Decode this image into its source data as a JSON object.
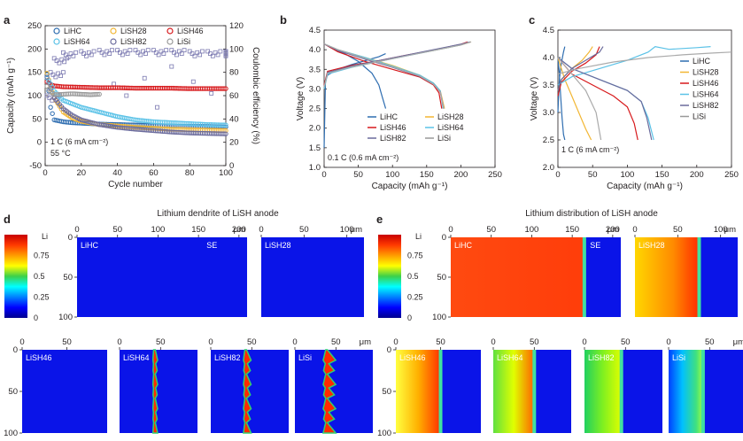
{
  "chart_data": [
    {
      "panel": "a",
      "type": "scatter",
      "xlabel": "Cycle number",
      "ylabel": "Capacity (mAh g⁻¹)",
      "y2label": "Coulombic efficiency (%)",
      "xlim": [
        0,
        100
      ],
      "ylim": [
        -50,
        250
      ],
      "y2lim": [
        0,
        120
      ],
      "xticks": [
        0,
        20,
        40,
        60,
        80,
        100
      ],
      "yticks": [
        -50,
        0,
        50,
        100,
        150,
        200,
        250
      ],
      "y2ticks": [
        0,
        20,
        40,
        60,
        80,
        100,
        120
      ],
      "annotations": [
        "1 C (6 mA cm⁻²)",
        "55 °C"
      ],
      "legend": [
        "LiHC",
        "LiSH28",
        "LiSH46",
        "LiSH64",
        "LiSH82",
        "LiSi"
      ],
      "series": [
        {
          "name": "LiHC",
          "color": "#2e6db0",
          "x": [
            1,
            3,
            5,
            10,
            15,
            20,
            30,
            40,
            50,
            60,
            70,
            80,
            90,
            100
          ],
          "y": [
            145,
            75,
            48,
            44,
            42,
            41,
            39,
            38,
            37,
            36,
            35,
            34,
            34,
            33
          ]
        },
        {
          "name": "LiSH28",
          "color": "#f2b633",
          "x": [
            1,
            3,
            5,
            10,
            15,
            20,
            30,
            40,
            50,
            60,
            70,
            80,
            90,
            100
          ],
          "y": [
            148,
            120,
            95,
            65,
            52,
            45,
            38,
            35,
            32,
            30,
            28,
            27,
            26,
            25
          ]
        },
        {
          "name": "LiSH46",
          "color": "#d7191c",
          "x": [
            1,
            3,
            5,
            10,
            20,
            30,
            40,
            50,
            60,
            70,
            80,
            90,
            100
          ],
          "y": [
            130,
            124,
            121,
            119,
            118,
            117,
            117,
            116,
            116,
            116,
            115,
            115,
            115
          ]
        },
        {
          "name": "LiSH64",
          "color": "#5bc2e7",
          "x": [
            1,
            3,
            5,
            10,
            20,
            30,
            40,
            50,
            60,
            70,
            80,
            90,
            100
          ],
          "y": [
            138,
            125,
            110,
            90,
            75,
            65,
            55,
            48,
            44,
            42,
            40,
            38,
            37
          ]
        },
        {
          "name": "LiSH82",
          "color": "#6b6b9c",
          "x": [
            1,
            3,
            5,
            10,
            15,
            20,
            30,
            40,
            50,
            60,
            70,
            80,
            90,
            100
          ],
          "y": [
            140,
            115,
            95,
            72,
            58,
            48,
            38,
            32,
            28,
            25,
            22,
            20,
            19,
            18
          ]
        },
        {
          "name": "LiSi",
          "color": "#999999",
          "x": [
            1,
            3,
            5,
            10,
            15,
            20,
            25,
            30
          ],
          "y": [
            120,
            108,
            102,
            103,
            104,
            103,
            102,
            103
          ]
        }
      ],
      "coulombic_efficiency": {
        "x": [
          1,
          3,
          5,
          10,
          20,
          30,
          40,
          50,
          60,
          70,
          80,
          90,
          100
        ],
        "y": [
          60,
          80,
          92,
          97,
          98,
          99,
          99,
          99,
          99,
          99,
          98,
          98,
          98
        ]
      }
    },
    {
      "panel": "b",
      "type": "line",
      "xlabel": "Capacity (mAh g⁻¹)",
      "ylabel": "Voltage (V)",
      "xlim": [
        0,
        250
      ],
      "ylim": [
        1.0,
        4.5
      ],
      "xticks": [
        0,
        50,
        100,
        150,
        200,
        250
      ],
      "yticks": [
        1.0,
        1.5,
        2.0,
        2.5,
        3.0,
        3.5,
        4.0,
        4.5
      ],
      "annotation": "0.1 C (0.6 mA cm⁻²)",
      "legend": [
        "LiHC",
        "LiSH28",
        "LiSH46",
        "LiSH64",
        "LiSH82",
        "LiSi"
      ],
      "series": [
        {
          "name": "LiHC",
          "color": "#2e6db0",
          "charge": {
            "x": [
              0,
              2,
              5,
              20,
              40,
              60,
              80,
              90
            ],
            "y": [
              1.5,
              3.2,
              3.35,
              3.5,
              3.62,
              3.72,
              3.82,
              3.9
            ]
          },
          "discharge": {
            "x": [
              0,
              10,
              30,
              50,
              70,
              80,
              85,
              90
            ],
            "y": [
              4.15,
              4.05,
              3.9,
              3.7,
              3.4,
              3.1,
              2.8,
              2.5
            ]
          }
        },
        {
          "name": "LiSH28",
          "color": "#f2b633",
          "charge": {
            "x": [
              0,
              5,
              40,
              80,
              120,
              160,
              200,
              215
            ],
            "y": [
              3.0,
              3.4,
              3.55,
              3.7,
              3.85,
              3.98,
              4.12,
              4.2
            ]
          },
          "discharge": {
            "x": [
              0,
              20,
              60,
              100,
              140,
              160,
              170,
              176
            ],
            "y": [
              4.15,
              4.0,
              3.8,
              3.6,
              3.35,
              3.15,
              2.95,
              2.5
            ]
          }
        },
        {
          "name": "LiSH46",
          "color": "#d7191c",
          "charge": {
            "x": [
              0,
              5,
              40,
              80,
              120,
              160,
              200,
              210
            ],
            "y": [
              3.1,
              3.45,
              3.6,
              3.72,
              3.86,
              3.99,
              4.14,
              4.2
            ]
          },
          "discharge": {
            "x": [
              0,
              20,
              60,
              100,
              140,
              160,
              168,
              172
            ],
            "y": [
              4.15,
              3.95,
              3.7,
              3.5,
              3.3,
              3.1,
              2.9,
              2.5
            ]
          }
        },
        {
          "name": "LiSH64",
          "color": "#5bc2e7",
          "charge": {
            "x": [
              0,
              5,
              40,
              80,
              120,
              160,
              200,
              213
            ],
            "y": [
              3.0,
              3.38,
              3.55,
              3.7,
              3.84,
              3.98,
              4.12,
              4.2
            ]
          },
          "discharge": {
            "x": [
              0,
              20,
              60,
              100,
              140,
              160,
              170,
              174
            ],
            "y": [
              4.15,
              4.0,
              3.8,
              3.58,
              3.35,
              3.15,
              2.95,
              2.5
            ]
          }
        },
        {
          "name": "LiSH82",
          "color": "#6b6b9c",
          "charge": {
            "x": [
              0,
              5,
              40,
              80,
              120,
              160,
              200,
              214
            ],
            "y": [
              3.05,
              3.42,
              3.58,
              3.72,
              3.86,
              4.0,
              4.14,
              4.2
            ]
          },
          "discharge": {
            "x": [
              0,
              20,
              60,
              100,
              140,
              160,
              170,
              175
            ],
            "y": [
              4.15,
              3.98,
              3.76,
              3.55,
              3.32,
              3.12,
              2.92,
              2.5
            ]
          }
        },
        {
          "name": "LiSi",
          "color": "#aaaaaa",
          "charge": {
            "x": [
              0,
              5,
              40,
              80,
              120,
              160,
              200,
              215
            ],
            "y": [
              3.05,
              3.4,
              3.56,
              3.7,
              3.84,
              3.98,
              4.12,
              4.2
            ]
          },
          "discharge": {
            "x": [
              0,
              20,
              60,
              100,
              140,
              160,
              170,
              175
            ],
            "y": [
              4.15,
              4.0,
              3.78,
              3.56,
              3.33,
              3.12,
              2.92,
              2.5
            ]
          }
        }
      ]
    },
    {
      "panel": "c",
      "type": "line",
      "xlabel": "Capacity (mAh g⁻¹)",
      "ylabel": "Voltage (V)",
      "xlim": [
        0,
        250
      ],
      "ylim": [
        2.0,
        4.5
      ],
      "xticks": [
        0,
        50,
        100,
        150,
        200,
        250
      ],
      "yticks": [
        2.0,
        2.5,
        3.0,
        3.5,
        4.0,
        4.5
      ],
      "annotation": "1 C (6 mA cm⁻²)",
      "legend": [
        "LiHC",
        "LiSH28",
        "LiSH46",
        "LiSH64",
        "LiSH82",
        "LiSi"
      ],
      "series": [
        {
          "name": "LiHC",
          "color": "#2e6db0",
          "charge": {
            "x": [
              0,
              2,
              5,
              8,
              10
            ],
            "y": [
              3.0,
              3.6,
              3.9,
              4.1,
              4.2
            ]
          },
          "discharge": {
            "x": [
              0,
              2,
              4,
              6,
              8,
              10
            ],
            "y": [
              4.0,
              3.7,
              3.3,
              2.9,
              2.6,
              2.5
            ]
          }
        },
        {
          "name": "LiSH28",
          "color": "#f2b633",
          "charge": {
            "x": [
              0,
              5,
              20,
              35,
              45,
              50
            ],
            "y": [
              3.4,
              3.6,
              3.8,
              3.95,
              4.1,
              4.2
            ]
          },
          "discharge": {
            "x": [
              0,
              10,
              20,
              30,
              40,
              48
            ],
            "y": [
              4.0,
              3.6,
              3.3,
              3.0,
              2.7,
              2.5
            ]
          }
        },
        {
          "name": "LiSH46",
          "color": "#d7191c",
          "charge": {
            "x": [
              0,
              5,
              20,
              40,
              55,
              60
            ],
            "y": [
              3.3,
              3.55,
              3.75,
              3.9,
              4.05,
              4.2
            ]
          },
          "discharge": {
            "x": [
              0,
              20,
              50,
              80,
              100,
              110,
              115
            ],
            "y": [
              4.0,
              3.7,
              3.5,
              3.3,
              3.1,
              2.8,
              2.5
            ]
          }
        },
        {
          "name": "LiSH64",
          "color": "#5bc2e7",
          "charge": {
            "x": [
              0,
              20,
              60,
              100,
              130,
              140,
              160,
              200,
              220
            ],
            "y": [
              3.5,
              3.65,
              3.8,
              3.95,
              4.1,
              4.2,
              4.15,
              4.18,
              4.2
            ]
          },
          "discharge": {
            "x": [
              0,
              20,
              60,
              100,
              120,
              130,
              138
            ],
            "y": [
              4.0,
              3.8,
              3.6,
              3.4,
              3.2,
              2.9,
              2.5
            ]
          }
        },
        {
          "name": "LiSH82",
          "color": "#6b6b9c",
          "charge": {
            "x": [
              0,
              5,
              20,
              40,
              60,
              65
            ],
            "y": [
              3.4,
              3.6,
              3.8,
              3.95,
              4.1,
              4.2
            ]
          },
          "discharge": {
            "x": [
              0,
              20,
              60,
              100,
              120,
              128,
              135
            ],
            "y": [
              4.0,
              3.8,
              3.6,
              3.4,
              3.2,
              2.9,
              2.5
            ]
          }
        },
        {
          "name": "LiSi",
          "color": "#aaaaaa",
          "charge": {
            "x": [
              0,
              30,
              80,
              130,
              180,
              220,
              250
            ],
            "y": [
              3.7,
              3.8,
              3.92,
              4.0,
              4.05,
              4.08,
              4.1
            ]
          },
          "discharge": {
            "x": [
              0,
              20,
              40,
              55,
              62
            ],
            "y": [
              4.0,
              3.7,
              3.4,
              3.0,
              2.5
            ]
          }
        }
      ]
    },
    {
      "panel": "d",
      "type": "heatmap",
      "title": "Lithium dendrite of LiSH anode",
      "colorbar": {
        "label": "Li",
        "ticks": [
          0,
          0.25,
          0.5,
          0.75
        ]
      },
      "maps": [
        {
          "name": "LiHC",
          "xticks": [
            0,
            50,
            100,
            150,
            200
          ],
          "yticks": [
            0,
            50,
            100
          ],
          "unit": "μm",
          "label_se": "SE",
          "interface_x": null
        },
        {
          "name": "LiSH28",
          "xticks": [
            0,
            50,
            100
          ],
          "yticks": [],
          "unit": "μm",
          "interface_x": null
        },
        {
          "name": "LiSH46",
          "xticks": [
            0,
            50
          ],
          "yticks": [
            0,
            50,
            100
          ],
          "unit": "",
          "interface_x": null
        },
        {
          "name": "LiSH64",
          "xticks": [
            0,
            50
          ],
          "yticks": [],
          "unit": "",
          "interface_x": 42
        },
        {
          "name": "LiSH82",
          "xticks": [
            0,
            50
          ],
          "yticks": [],
          "unit": "",
          "interface_x": 42
        },
        {
          "name": "LiSi",
          "xticks": [
            0,
            50
          ],
          "yticks": [],
          "unit": "μm",
          "interface_x": 38
        }
      ]
    },
    {
      "panel": "e",
      "type": "heatmap",
      "title": "Lithium distribution of LiSH anode",
      "colorbar": {
        "label": "Li",
        "ticks": [
          0,
          0.25,
          0.5,
          0.75
        ]
      },
      "maps": [
        {
          "name": "LiHC",
          "xticks": [
            0,
            50,
            100,
            150,
            200
          ],
          "yticks": [
            0,
            50,
            100
          ],
          "unit": "μm",
          "label_se": "SE",
          "interface_x": 165
        },
        {
          "name": "LiSH28",
          "xticks": [
            0,
            50,
            100
          ],
          "yticks": [],
          "unit": "μm",
          "interface_x": 75
        },
        {
          "name": "LiSH46",
          "xticks": [
            0,
            50
          ],
          "yticks": [
            0,
            50,
            100
          ],
          "unit": "",
          "interface_x": 50
        },
        {
          "name": "LiSH64",
          "xticks": [
            0,
            50
          ],
          "yticks": [],
          "unit": "",
          "interface_x": 50
        },
        {
          "name": "LiSH82",
          "xticks": [
            0,
            50
          ],
          "yticks": [],
          "unit": "",
          "interface_x": 45
        },
        {
          "name": "LiSi",
          "xticks": [
            0,
            50
          ],
          "yticks": [],
          "unit": "μm",
          "interface_x": 42
        }
      ]
    }
  ],
  "panel_labels": [
    "a",
    "b",
    "c",
    "d",
    "e"
  ]
}
